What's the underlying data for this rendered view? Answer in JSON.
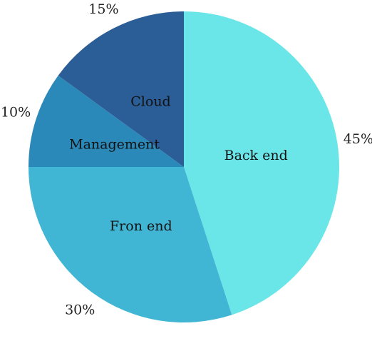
{
  "chart_data": {
    "type": "pie",
    "title": "",
    "start_angle_deg": 0,
    "direction": "clockwise",
    "slices": [
      {
        "label": "Back end",
        "value": 45,
        "percent_label": "45%",
        "color": "#6ae5e8"
      },
      {
        "label": "Fron end",
        "value": 30,
        "percent_label": "30%",
        "color": "#41b6d4"
      },
      {
        "label": "Management",
        "value": 10,
        "percent_label": "10%",
        "color": "#2b89ba"
      },
      {
        "label": "Cloud",
        "value": 15,
        "percent_label": "15%",
        "color": "#2b5d96"
      }
    ]
  }
}
